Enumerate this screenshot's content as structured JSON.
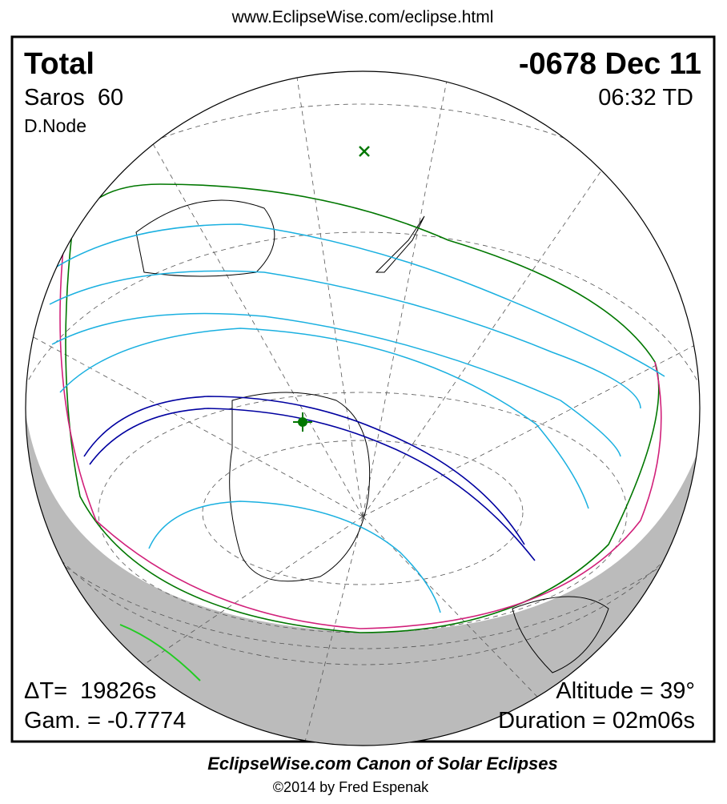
{
  "header": {
    "url": "www.EclipseWise.com/eclipse.html"
  },
  "panel": {
    "type": "Total",
    "date": "-0678 Dec 11",
    "saros": "Saros  60",
    "time": "06:32 TD",
    "node": "D.Node",
    "delta_t": "ΔT=  19826s",
    "gamma": "Gam. = -0.7774",
    "altitude": "Altitude = 39°",
    "duration": "Duration = 02m06s"
  },
  "footer": {
    "title": "EclipseWise.com Canon of Solar Eclipses",
    "credit": "©2014 by Fred Espenak"
  }
}
